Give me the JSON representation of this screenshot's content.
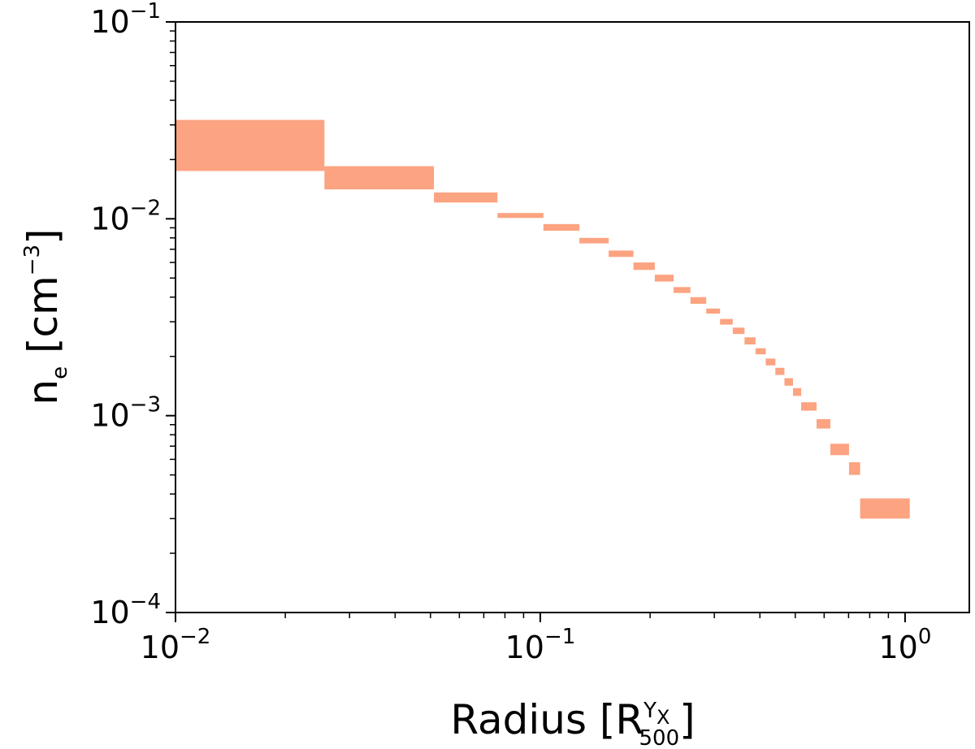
{
  "chart_data": {
    "type": "area",
    "xscale": "log",
    "yscale": "log",
    "xlim": [
      0.01,
      1.5
    ],
    "ylim": [
      0.0001,
      0.1
    ],
    "xlabel": {
      "main": "Radius [R",
      "sup": "Y",
      "sup_sub": "X",
      "sub": "500",
      "close": "]"
    },
    "ylabel": {
      "main": "n",
      "sub": "e",
      "rest": " [cm",
      "sup": "−3",
      "close": "]"
    },
    "x_ticks": [
      {
        "value": 0.01,
        "base": "10",
        "exp": "−2"
      },
      {
        "value": 0.1,
        "base": "10",
        "exp": "−1"
      },
      {
        "value": 1,
        "base": "10",
        "exp": "0"
      }
    ],
    "y_ticks": [
      {
        "value": 0.0001,
        "base": "10",
        "exp": "−4"
      },
      {
        "value": 0.001,
        "base": "10",
        "exp": "−3"
      },
      {
        "value": 0.01,
        "base": "10",
        "exp": "−2"
      },
      {
        "value": 0.1,
        "base": "10",
        "exp": "−1"
      }
    ],
    "grid": false,
    "color": "#fca381",
    "bins": [
      {
        "x0": 0.01,
        "x1": 0.0256,
        "ylo": 0.0175,
        "yhi": 0.0318
      },
      {
        "x0": 0.0256,
        "x1": 0.0511,
        "ylo": 0.0141,
        "yhi": 0.0185
      },
      {
        "x0": 0.0511,
        "x1": 0.0763,
        "ylo": 0.0121,
        "yhi": 0.0136
      },
      {
        "x0": 0.0763,
        "x1": 0.102,
        "ylo": 0.0101,
        "yhi": 0.0107
      },
      {
        "x0": 0.102,
        "x1": 0.128,
        "ylo": 0.0087,
        "yhi": 0.0094
      },
      {
        "x0": 0.128,
        "x1": 0.154,
        "ylo": 0.0075,
        "yhi": 0.008
      },
      {
        "x0": 0.154,
        "x1": 0.18,
        "ylo": 0.0064,
        "yhi": 0.0069
      },
      {
        "x0": 0.18,
        "x1": 0.206,
        "ylo": 0.0055,
        "yhi": 0.006
      },
      {
        "x0": 0.206,
        "x1": 0.232,
        "ylo": 0.0048,
        "yhi": 0.0052
      },
      {
        "x0": 0.232,
        "x1": 0.258,
        "ylo": 0.0042,
        "yhi": 0.0045
      },
      {
        "x0": 0.258,
        "x1": 0.285,
        "ylo": 0.0037,
        "yhi": 0.004
      },
      {
        "x0": 0.285,
        "x1": 0.311,
        "ylo": 0.0033,
        "yhi": 0.0035
      },
      {
        "x0": 0.311,
        "x1": 0.337,
        "ylo": 0.0029,
        "yhi": 0.0031
      },
      {
        "x0": 0.337,
        "x1": 0.363,
        "ylo": 0.0026,
        "yhi": 0.0028
      },
      {
        "x0": 0.363,
        "x1": 0.389,
        "ylo": 0.0023,
        "yhi": 0.0025
      },
      {
        "x0": 0.389,
        "x1": 0.415,
        "ylo": 0.00205,
        "yhi": 0.0022
      },
      {
        "x0": 0.415,
        "x1": 0.441,
        "ylo": 0.0018,
        "yhi": 0.00195
      },
      {
        "x0": 0.441,
        "x1": 0.467,
        "ylo": 0.00161,
        "yhi": 0.00175
      },
      {
        "x0": 0.467,
        "x1": 0.493,
        "ylo": 0.00142,
        "yhi": 0.00155
      },
      {
        "x0": 0.493,
        "x1": 0.519,
        "ylo": 0.00126,
        "yhi": 0.00138
      },
      {
        "x0": 0.519,
        "x1": 0.572,
        "ylo": 0.00106,
        "yhi": 0.00117
      },
      {
        "x0": 0.572,
        "x1": 0.624,
        "ylo": 0.00086,
        "yhi": 0.00096
      },
      {
        "x0": 0.624,
        "x1": 0.702,
        "ylo": 0.00063,
        "yhi": 0.00072
      },
      {
        "x0": 0.702,
        "x1": 0.753,
        "ylo": 0.0005,
        "yhi": 0.00058
      },
      {
        "x0": 0.753,
        "x1": 1.03,
        "ylo": 0.0003,
        "yhi": 0.00038
      }
    ]
  }
}
